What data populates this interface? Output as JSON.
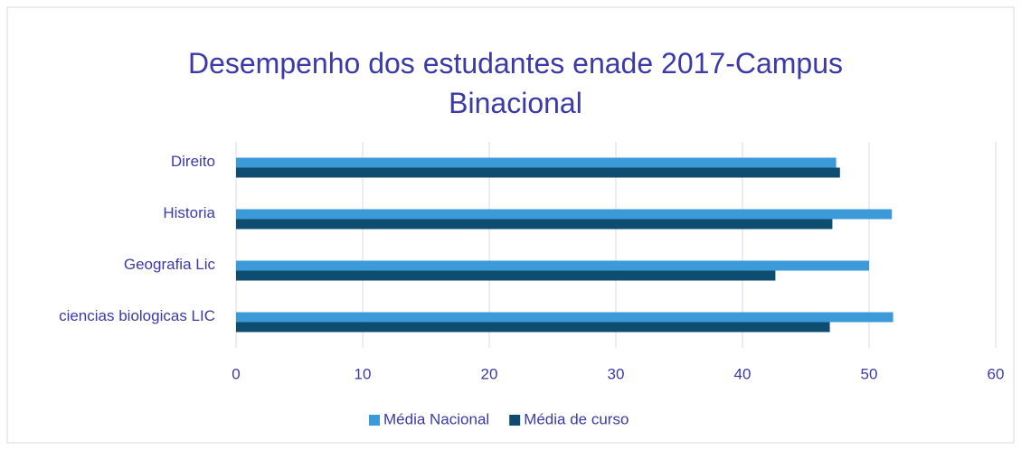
{
  "chart_data": {
    "type": "bar",
    "orientation": "horizontal",
    "title": "Desempenho dos estudantes enade 2017-Campus Binacional",
    "categories": [
      "Direito",
      "Historia",
      "Geografia Lic",
      "ciencias biologicas LIC"
    ],
    "series": [
      {
        "name": "Média Nacional",
        "color": "#3d9ad9",
        "values": [
          47.4,
          51.8,
          50.0,
          51.9
        ]
      },
      {
        "name": "Média de curso",
        "color": "#0e4d70",
        "values": [
          47.7,
          47.1,
          42.6,
          46.9
        ]
      }
    ],
    "xlim": [
      0,
      60
    ],
    "xticks": [
      0,
      10,
      20,
      30,
      40,
      50,
      60
    ],
    "grid": true,
    "legend": "bottom"
  }
}
